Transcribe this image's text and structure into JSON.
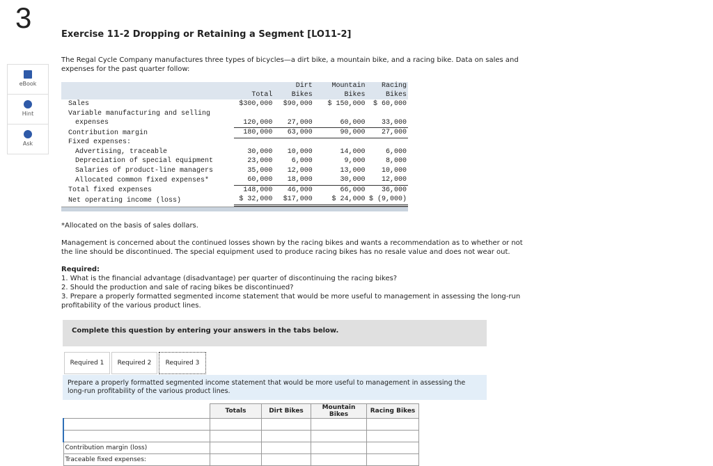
{
  "sidebar": {
    "number": "3",
    "items": [
      "eBook",
      "Hint",
      "Ask"
    ]
  },
  "header": {
    "title": "Exercise 11-2 Dropping or Retaining a Segment [LO11-2]"
  },
  "intro": "The Regal Cycle Company manufactures three types of bicycles—a dirt bike, a mountain bike, and a racing bike. Data on sales and expenses for the past quarter follow:",
  "data_table": {
    "columns": [
      "Total",
      "Dirt Bikes",
      "Mountain Bikes",
      "Racing Bikes"
    ],
    "rows": [
      [
        "Sales",
        "$300,000",
        "$90,000",
        "$ 150,000",
        "$ 60,000"
      ],
      [
        "Variable manufacturing and selling expenses",
        "120,000",
        "27,000",
        "60,000",
        "33,000"
      ],
      [
        "Contribution margin",
        "180,000",
        "63,000",
        "90,000",
        "27,000"
      ],
      [
        "Fixed expenses:"
      ],
      [
        "Advertising, traceable",
        "30,000",
        "10,000",
        "14,000",
        "6,000"
      ],
      [
        "Depreciation of special equipment",
        "23,000",
        "6,000",
        "9,000",
        "8,000"
      ],
      [
        "Salaries of product-line managers",
        "35,000",
        "12,000",
        "13,000",
        "10,000"
      ],
      [
        "Allocated common fixed expenses*",
        "60,000",
        "18,000",
        "30,000",
        "12,000"
      ],
      [
        "Total fixed expenses",
        "148,000",
        "46,000",
        "66,000",
        "36,000"
      ],
      [
        "Net operating income (loss)",
        "$ 32,000",
        "$17,000",
        "$ 24,000",
        "$ (9,000)"
      ]
    ]
  },
  "footnote": "*Allocated on the basis of sales dollars.",
  "management": "Management is concerned about the continued losses shown by the racing bikes and wants a recommendation as to whether or not the line should be discontinued. The special equipment used to produce racing bikes has no resale value and does not wear out.",
  "required": {
    "label": "Required:",
    "items": [
      "1. What is the financial advantage (disadvantage) per quarter of discontinuing the racing bikes?",
      "2. Should the production and sale of racing bikes be discontinued?",
      "3. Prepare a properly formatted segmented income statement that would be more useful to management in assessing the long-run profitability of the various product lines."
    ]
  },
  "prompt": "Complete this question by entering your answers in the tabs below.",
  "tabs": [
    "Required 1",
    "Required 2",
    "Required 3"
  ],
  "instruction": "Prepare a properly formatted segmented income statement that would be more useful to management in assessing the long-run profitability of the various product lines.",
  "answer_table": {
    "columns": [
      "Totals",
      "Dirt Bikes",
      "Mountain Bikes",
      "Racing Bikes"
    ],
    "rows": [
      "Contribution margin (loss)",
      "Traceable fixed expenses:"
    ]
  }
}
